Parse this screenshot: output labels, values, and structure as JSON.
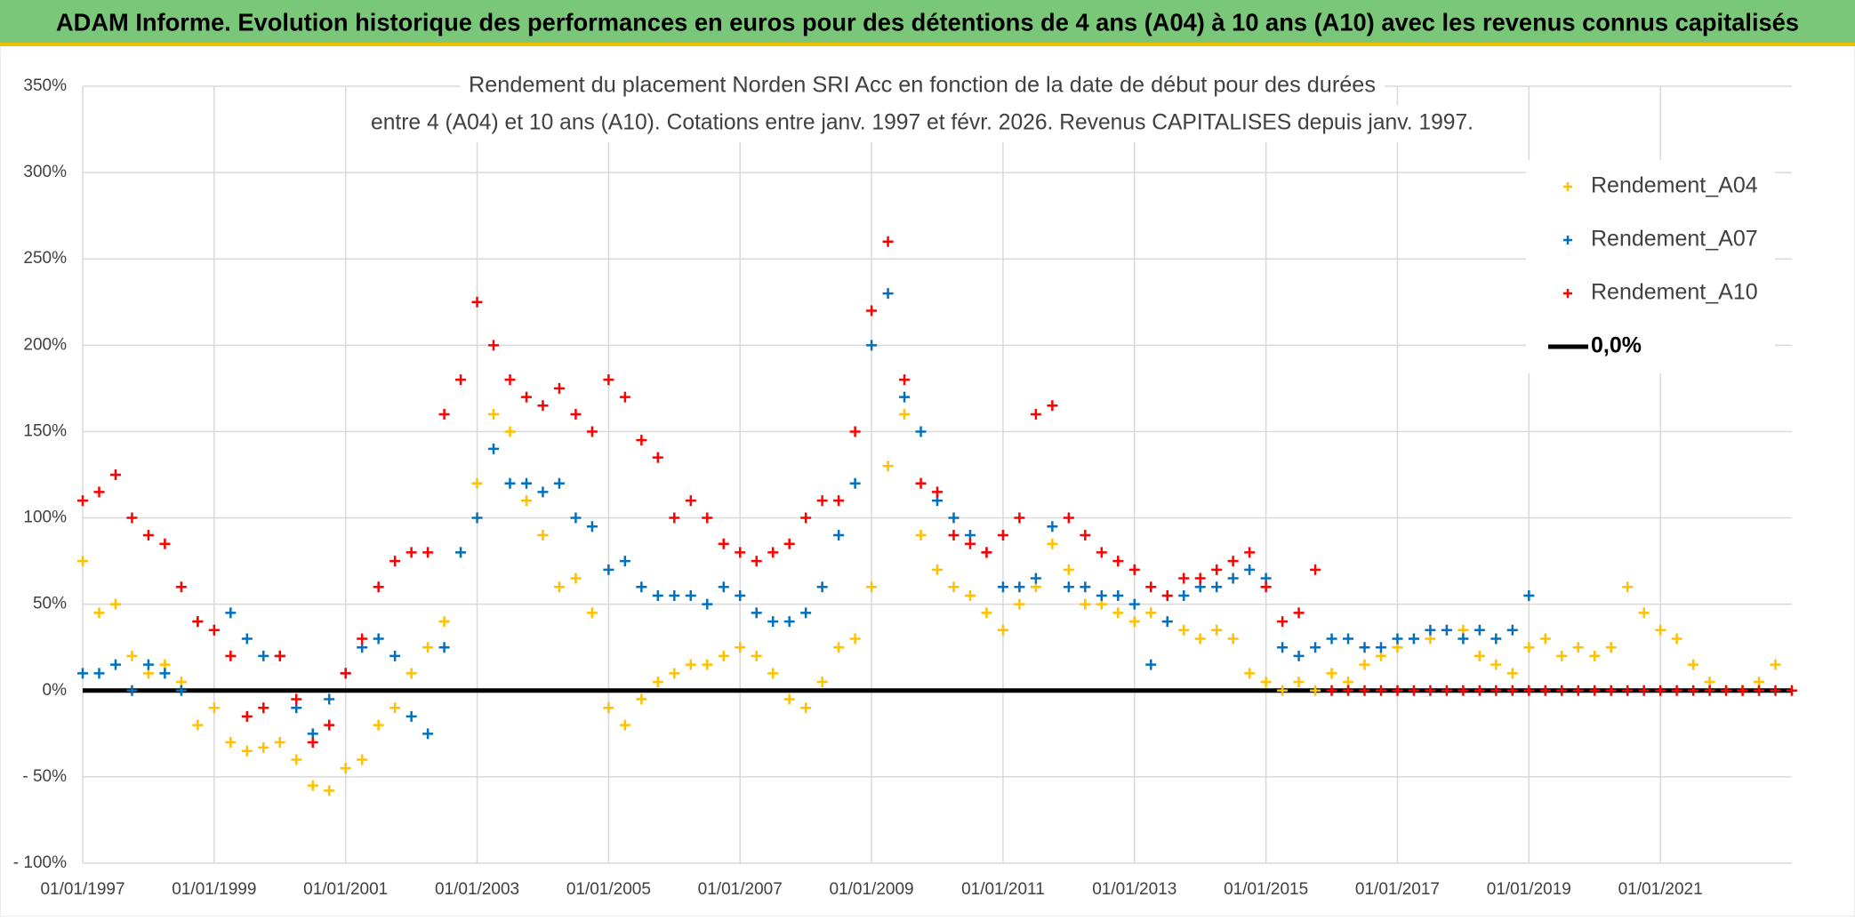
{
  "header": {
    "title": "ADAM Informe. Evolution historique des performances en euros pour des détentions de 4 ans (A04) à 10 ans (A10) avec les revenus connus capitalisés"
  },
  "chart_data": {
    "type": "scatter",
    "title": [
      "Rendement du placement Norden SRI Acc en fonction de la date de début pour des durées",
      "entre 4 (A04) et 10 ans (A10). Cotations entre janv. 1997 et févr. 2026. Revenus CAPITALISES depuis janv. 1997."
    ],
    "x": [
      1997,
      1997.25,
      1997.5,
      1997.75,
      1998,
      1998.25,
      1998.5,
      1998.75,
      1999,
      1999.25,
      1999.5,
      1999.75,
      2000,
      2000.25,
      2000.5,
      2000.75,
      2001,
      2001.25,
      2001.5,
      2001.75,
      2002,
      2002.25,
      2002.5,
      2002.75,
      2003,
      2003.25,
      2003.5,
      2003.75,
      2004,
      2004.25,
      2004.5,
      2004.75,
      2005,
      2005.25,
      2005.5,
      2005.75,
      2006,
      2006.25,
      2006.5,
      2006.75,
      2007,
      2007.25,
      2007.5,
      2007.75,
      2008,
      2008.25,
      2008.5,
      2008.75,
      2009,
      2009.25,
      2009.5,
      2009.75,
      2010,
      2010.25,
      2010.5,
      2010.75,
      2011,
      2011.25,
      2011.5,
      2011.75,
      2012,
      2012.25,
      2012.5,
      2012.75,
      2013,
      2013.25,
      2013.5,
      2013.75,
      2014,
      2014.25,
      2014.5,
      2014.75,
      2015,
      2015.25,
      2015.5,
      2015.75,
      2016,
      2016.25,
      2016.5,
      2016.75,
      2017,
      2017.25,
      2017.5,
      2017.75,
      2018,
      2018.25,
      2018.5,
      2018.75,
      2019,
      2019.25,
      2019.5,
      2019.75,
      2020,
      2020.25,
      2020.5,
      2020.75,
      2021,
      2021.25,
      2021.5,
      2021.75,
      2022,
      2022.25,
      2022.5,
      2022.75,
      2023
    ],
    "series": [
      {
        "name": "Rendement_A04",
        "color": "#ffc000",
        "values": [
          75,
          45,
          50,
          20,
          10,
          15,
          5,
          -20,
          -10,
          -30,
          -35,
          -33,
          -30,
          -40,
          -55,
          -58,
          -45,
          -40,
          -20,
          -10,
          10,
          25,
          40,
          80,
          120,
          160,
          150,
          110,
          90,
          60,
          65,
          45,
          -10,
          -20,
          -5,
          5,
          10,
          15,
          15,
          20,
          25,
          20,
          10,
          -5,
          -10,
          5,
          25,
          30,
          60,
          130,
          160,
          90,
          70,
          60,
          55,
          45,
          35,
          50,
          60,
          85,
          70,
          50,
          50,
          45,
          40,
          45,
          40,
          35,
          30,
          35,
          30,
          10,
          5,
          0,
          5,
          0,
          10,
          5,
          15,
          20,
          25,
          30,
          30,
          35,
          35,
          20,
          15,
          10,
          25,
          30,
          20,
          25,
          20,
          25,
          60,
          45,
          35,
          30,
          15,
          5,
          0,
          0,
          5,
          15,
          0
        ]
      },
      {
        "name": "Rendement_A07",
        "color": "#0070c0",
        "values": [
          10,
          10,
          15,
          0,
          15,
          10,
          0,
          40,
          35,
          45,
          30,
          20,
          20,
          -10,
          -25,
          -5,
          10,
          25,
          30,
          20,
          -15,
          -25,
          25,
          80,
          100,
          140,
          120,
          120,
          115,
          120,
          100,
          95,
          70,
          75,
          60,
          55,
          55,
          55,
          50,
          60,
          55,
          45,
          40,
          40,
          45,
          60,
          90,
          120,
          200,
          230,
          170,
          150,
          110,
          100,
          90,
          80,
          60,
          60,
          65,
          95,
          60,
          60,
          55,
          55,
          50,
          15,
          40,
          55,
          60,
          60,
          65,
          70,
          65,
          25,
          20,
          25,
          30,
          30,
          25,
          25,
          30,
          30,
          35,
          35,
          30,
          35,
          30,
          35,
          55,
          null,
          null,
          null,
          null,
          null,
          null,
          null,
          null,
          null,
          null,
          null,
          null,
          null,
          null,
          null,
          null
        ]
      },
      {
        "name": "Rendement_A10",
        "color": "#ff0000",
        "values": [
          110,
          115,
          125,
          100,
          90,
          85,
          60,
          40,
          35,
          20,
          -15,
          -10,
          20,
          -5,
          -30,
          -20,
          10,
          30,
          60,
          75,
          80,
          80,
          160,
          180,
          225,
          200,
          180,
          170,
          165,
          175,
          160,
          150,
          180,
          170,
          145,
          135,
          100,
          110,
          100,
          85,
          80,
          75,
          80,
          85,
          100,
          110,
          110,
          150,
          220,
          260,
          180,
          120,
          115,
          90,
          85,
          80,
          90,
          100,
          160,
          165,
          100,
          90,
          80,
          75,
          70,
          60,
          55,
          65,
          65,
          70,
          75,
          80,
          60,
          40,
          45,
          70,
          0,
          0,
          0,
          0,
          0,
          0,
          0,
          0,
          0,
          0,
          0,
          0,
          0,
          0,
          0,
          0,
          0,
          0,
          0,
          0,
          0,
          0,
          0,
          0,
          0,
          0,
          0,
          0,
          0
        ]
      }
    ],
    "reference_line": {
      "name": "0,0%",
      "color": "#000000",
      "value": 0
    },
    "xlim": [
      1997,
      2023
    ],
    "xticks": [
      {
        "value": 1997,
        "label": "01/01/1997"
      },
      {
        "value": 1999,
        "label": "01/01/1999"
      },
      {
        "value": 2001,
        "label": "01/01/2001"
      },
      {
        "value": 2003,
        "label": "01/01/2003"
      },
      {
        "value": 2005,
        "label": "01/01/2005"
      },
      {
        "value": 2007,
        "label": "01/01/2007"
      },
      {
        "value": 2009,
        "label": "01/01/2009"
      },
      {
        "value": 2011,
        "label": "01/01/2011"
      },
      {
        "value": 2013,
        "label": "01/01/2013"
      },
      {
        "value": 2015,
        "label": "01/01/2015"
      },
      {
        "value": 2017,
        "label": "01/01/2017"
      },
      {
        "value": 2019,
        "label": "01/01/2019"
      },
      {
        "value": 2021,
        "label": "01/01/2021"
      }
    ],
    "ylim": [
      -100,
      350
    ],
    "yticks": [
      {
        "value": -100,
        "label": "- 100%"
      },
      {
        "value": -50,
        "label": "- 50%"
      },
      {
        "value": 0,
        "label": "0%"
      },
      {
        "value": 50,
        "label": "50%"
      },
      {
        "value": 100,
        "label": "100%"
      },
      {
        "value": 150,
        "label": "150%"
      },
      {
        "value": 200,
        "label": "200%"
      },
      {
        "value": 250,
        "label": "250%"
      },
      {
        "value": 300,
        "label": "300%"
      },
      {
        "value": 350,
        "label": "350%"
      }
    ],
    "grid": true,
    "legend": "upper right"
  }
}
